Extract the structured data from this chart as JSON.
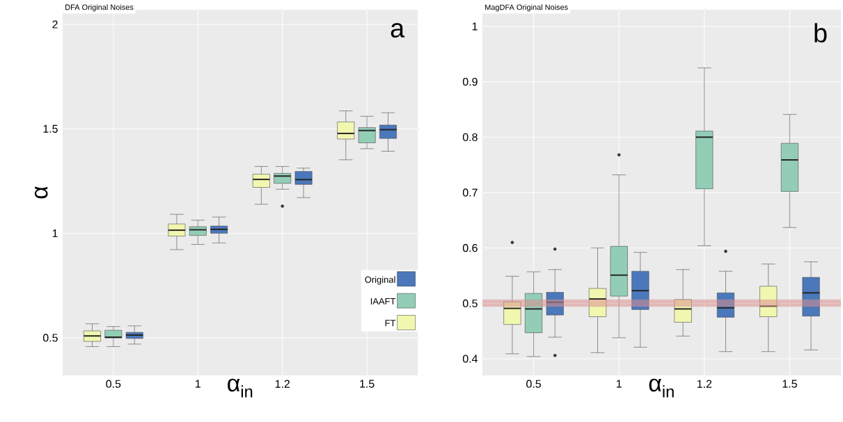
{
  "chart_data": [
    {
      "type": "box",
      "title": "DFA Original Noises",
      "xlabel": "α$_{in}$",
      "ylabel": "α",
      "annotations": [
        "a"
      ],
      "categories": [
        "0.5",
        "1",
        "1.2",
        "1.5"
      ],
      "ylim": [
        0.32,
        2.07
      ],
      "yticks": [
        0.5,
        1,
        1.5,
        2
      ],
      "grid": true,
      "legend": "bottom right",
      "series": [
        {
          "name": "FT",
          "color": "#f2f7b0",
          "boxes": [
            {
              "low": 0.458,
              "q1": 0.483,
              "median": 0.509,
              "q3": 0.533,
              "high": 0.567
            },
            {
              "low": 0.922,
              "q1": 0.987,
              "median": 1.015,
              "q3": 1.045,
              "high": 1.091
            },
            {
              "low": 1.139,
              "q1": 1.22,
              "median": 1.258,
              "q3": 1.283,
              "high": 1.32
            },
            {
              "low": 1.352,
              "q1": 1.451,
              "median": 1.478,
              "q3": 1.533,
              "high": 1.586
            }
          ]
        },
        {
          "name": "IAAFT",
          "color": "#93cdb5",
          "boxes": [
            {
              "low": 0.458,
              "q1": 0.499,
              "median": 0.503,
              "q3": 0.536,
              "high": 0.554
            },
            {
              "low": 0.947,
              "q1": 0.99,
              "median": 1.017,
              "q3": 1.032,
              "high": 1.063
            },
            {
              "low": 1.211,
              "q1": 1.239,
              "median": 1.274,
              "q3": 1.287,
              "high": 1.32,
              "outliers": [
                1.13
              ]
            },
            {
              "low": 1.405,
              "q1": 1.433,
              "median": 1.492,
              "q3": 1.506,
              "high": 1.56
            }
          ]
        },
        {
          "name": "Original",
          "color": "#4a78bb",
          "boxes": [
            {
              "low": 0.47,
              "q1": 0.497,
              "median": 0.513,
              "q3": 0.526,
              "high": 0.557
            },
            {
              "low": 0.954,
              "q1": 1.0,
              "median": 1.019,
              "q3": 1.035,
              "high": 1.078
            },
            {
              "low": 1.171,
              "q1": 1.234,
              "median": 1.257,
              "q3": 1.296,
              "high": 1.312
            },
            {
              "low": 1.393,
              "q1": 1.454,
              "median": 1.496,
              "q3": 1.518,
              "high": 1.577
            }
          ]
        }
      ]
    },
    {
      "type": "box",
      "title": "MagDFA Original Noises",
      "xlabel": "α$_{in}$",
      "annotations": [
        "b"
      ],
      "categories": [
        "0.5",
        "1",
        "1.2",
        "1.5"
      ],
      "ylim": [
        0.37,
        1.03
      ],
      "yticks": [
        0.4,
        0.5,
        0.6,
        0.7,
        0.8,
        0.9,
        1
      ],
      "grid": true,
      "bands": [
        {
          "axis": "y",
          "from": 0.494,
          "to": 0.507,
          "color": "#d98f8f"
        }
      ],
      "series": [
        {
          "color": "#f2f7b0",
          "boxes": [
            {
              "low": 0.409,
              "q1": 0.462,
              "median": 0.491,
              "q3": 0.503,
              "high": 0.549,
              "outliers": [
                0.61
              ]
            },
            {
              "low": 0.411,
              "q1": 0.476,
              "median": 0.508,
              "q3": 0.527,
              "high": 0.6
            },
            {
              "low": 0.441,
              "q1": 0.466,
              "median": 0.49,
              "q3": 0.507,
              "high": 0.561
            },
            {
              "low": 0.413,
              "q1": 0.476,
              "median": 0.495,
              "q3": 0.531,
              "high": 0.571
            }
          ]
        },
        {
          "color": "#93cdb5",
          "boxes": [
            {
              "low": 0.404,
              "q1": 0.447,
              "median": 0.49,
              "q3": 0.518,
              "high": 0.557
            },
            {
              "low": 0.438,
              "q1": 0.513,
              "median": 0.551,
              "q3": 0.603,
              "high": 0.732,
              "outliers": [
                0.768
              ]
            },
            {
              "low": 0.604,
              "q1": 0.707,
              "median": 0.8,
              "q3": 0.811,
              "high": 0.925
            },
            {
              "low": 0.637,
              "q1": 0.702,
              "median": 0.759,
              "q3": 0.789,
              "high": 0.841
            }
          ]
        },
        {
          "color": "#4a78bb",
          "boxes": [
            {
              "low": 0.439,
              "q1": 0.479,
              "median": 0.502,
              "q3": 0.52,
              "high": 0.561,
              "outliers": [
                0.598,
                0.406
              ]
            },
            {
              "low": 0.421,
              "q1": 0.489,
              "median": 0.523,
              "q3": 0.558,
              "high": 0.592
            },
            {
              "low": 0.413,
              "q1": 0.475,
              "median": 0.492,
              "q3": 0.519,
              "high": 0.558,
              "outliers": [
                0.594
              ]
            },
            {
              "low": 0.416,
              "q1": 0.477,
              "median": 0.519,
              "q3": 0.547,
              "high": 0.575
            }
          ]
        }
      ]
    }
  ]
}
